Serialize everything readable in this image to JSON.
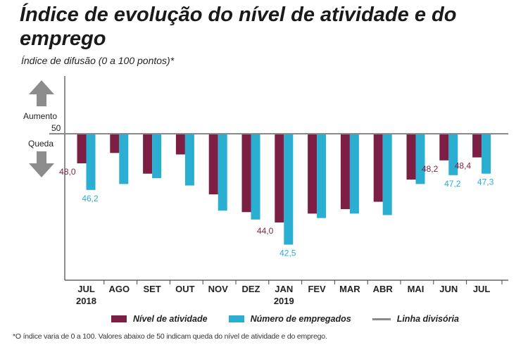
{
  "title": "Índice de evolução do nível de atividade e do emprego",
  "subtitle": "Índice de difusão (0 a 100 pontos)*",
  "footnote": "*O índice varia de 0 a 100. Valores abaixo de 50 indicam queda do nível de atividade e do emprego.",
  "arrows": {
    "up_label": "Aumento",
    "down_label": "Queda",
    "baseline_label": "50"
  },
  "legend": {
    "series1": "Nível de atividade",
    "series2": "Número de empregados",
    "line": "Linha divisória"
  },
  "colors": {
    "series1": "#7d1f45",
    "series2": "#2aaed1",
    "line": "#8a8a8a",
    "arrow": "#8c8c8c"
  },
  "chart_data": {
    "type": "bar",
    "baseline": 50,
    "ylim": [
      40,
      54
    ],
    "categories": [
      "JUL",
      "AGO",
      "SET",
      "OUT",
      "NOV",
      "DEZ",
      "JAN",
      "FEV",
      "MAR",
      "ABR",
      "MAI",
      "JUN",
      "JUL"
    ],
    "year_labels": [
      {
        "index": 0,
        "year": "2018"
      },
      {
        "index": 6,
        "year": "2019"
      }
    ],
    "series": [
      {
        "name": "Nível de atividade",
        "values": [
          48.0,
          48.7,
          47.3,
          48.6,
          45.9,
          44.7,
          44.0,
          44.6,
          44.9,
          45.4,
          46.9,
          48.2,
          48.4
        ]
      },
      {
        "name": "Número de empregados",
        "values": [
          46.2,
          46.6,
          47.0,
          46.5,
          44.8,
          44.2,
          42.5,
          44.3,
          44.6,
          44.5,
          46.6,
          47.2,
          47.3
        ]
      }
    ],
    "data_labels": [
      {
        "series": 0,
        "index": 0,
        "text": "48,0"
      },
      {
        "series": 1,
        "index": 0,
        "text": "46,2"
      },
      {
        "series": 0,
        "index": 6,
        "text": "44,0"
      },
      {
        "series": 1,
        "index": 6,
        "text": "42,5"
      },
      {
        "series": 0,
        "index": 11,
        "text": "48,2"
      },
      {
        "series": 1,
        "index": 11,
        "text": "47,2"
      },
      {
        "series": 0,
        "index": 12,
        "text": "48,4"
      },
      {
        "series": 1,
        "index": 12,
        "text": "47,3"
      }
    ]
  }
}
